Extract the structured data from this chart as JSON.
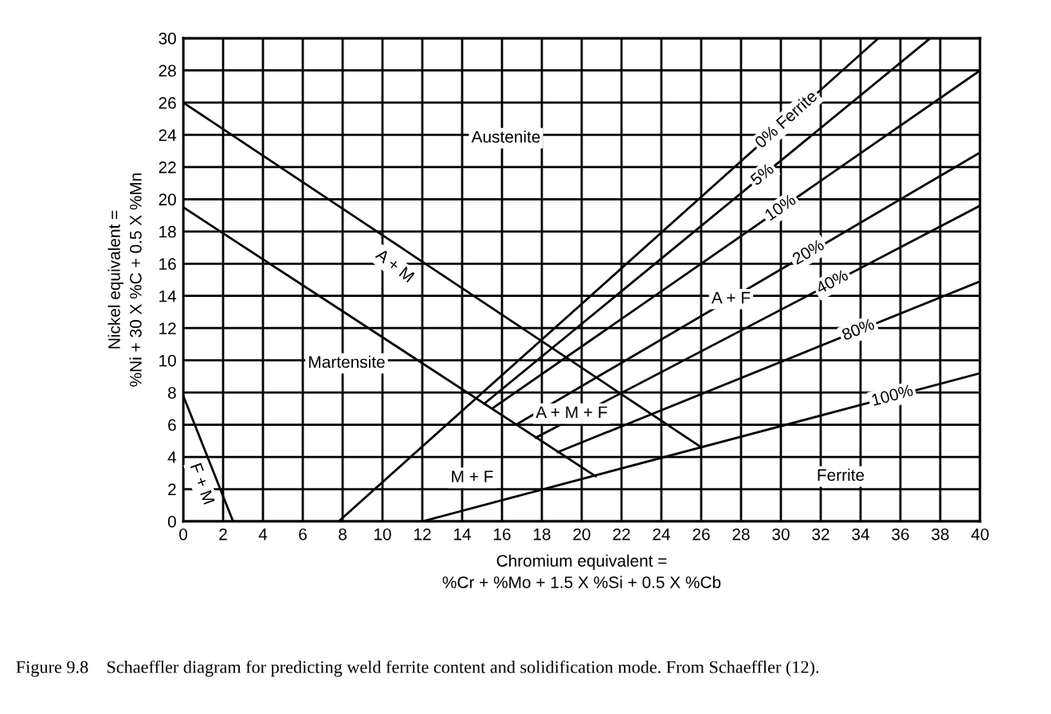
{
  "chart_data": {
    "type": "line",
    "xlabel": "Chromium equivalent =\n%Cr + %Mo + 1.5 X %Si + 0.5 X %Cb",
    "ylabel": "Nickel equivalent =\n%Ni + 30 X %C + 0.5 X %Mn",
    "xlim": [
      0,
      40
    ],
    "xticks": [
      0,
      2,
      4,
      6,
      8,
      10,
      12,
      14,
      16,
      18,
      20,
      22,
      24,
      26,
      28,
      30,
      32,
      34,
      36,
      38,
      40
    ],
    "ylim": [
      0,
      30
    ],
    "yticks": [
      0,
      2,
      4,
      6,
      8,
      10,
      12,
      14,
      16,
      18,
      20,
      22,
      24,
      26,
      28,
      30
    ],
    "grid": true,
    "marker": "none",
    "line_style": "solid",
    "series": [
      {
        "color": "#000000",
        "x": [
          0,
          26
        ],
        "values": [
          26,
          4.6
        ]
      },
      {
        "color": "#000000",
        "x": [
          0,
          20.7
        ],
        "values": [
          19.5,
          2.8
        ]
      },
      {
        "color": "#000000",
        "x": [
          0,
          2.5
        ],
        "values": [
          7.8,
          0
        ]
      },
      {
        "name": "0% Ferrite",
        "color": "#000000",
        "x": [
          7.8,
          34.9
        ],
        "values": [
          0,
          30
        ]
      },
      {
        "name": "5%",
        "color": "#000000",
        "x": [
          15.1,
          37.5
        ],
        "values": [
          7.3,
          30
        ]
      },
      {
        "name": "10%",
        "color": "#000000",
        "x": [
          15.5,
          40
        ],
        "values": [
          7.0,
          28.0
        ]
      },
      {
        "name": "20%",
        "color": "#000000",
        "x": [
          16.7,
          40
        ],
        "values": [
          6.0,
          22.9
        ]
      },
      {
        "name": "40%",
        "color": "#000000",
        "x": [
          17.7,
          40
        ],
        "values": [
          5.2,
          19.6
        ]
      },
      {
        "name": "80%",
        "color": "#000000",
        "x": [
          18.8,
          40
        ],
        "values": [
          4.3,
          14.9
        ]
      },
      {
        "name": "100%",
        "color": "#000000",
        "x": [
          12,
          40
        ],
        "values": [
          0,
          9.2
        ]
      }
    ],
    "annotations": [
      "Austenite",
      "Martensite",
      "A + M",
      "A + F",
      "A + M + F",
      "M + F",
      "F + M",
      "Ferrite",
      "Figure 9.8    Schaeffler diagram for predicting weld ferrite content and solidification mode. From Schaeffler (12)."
    ]
  }
}
